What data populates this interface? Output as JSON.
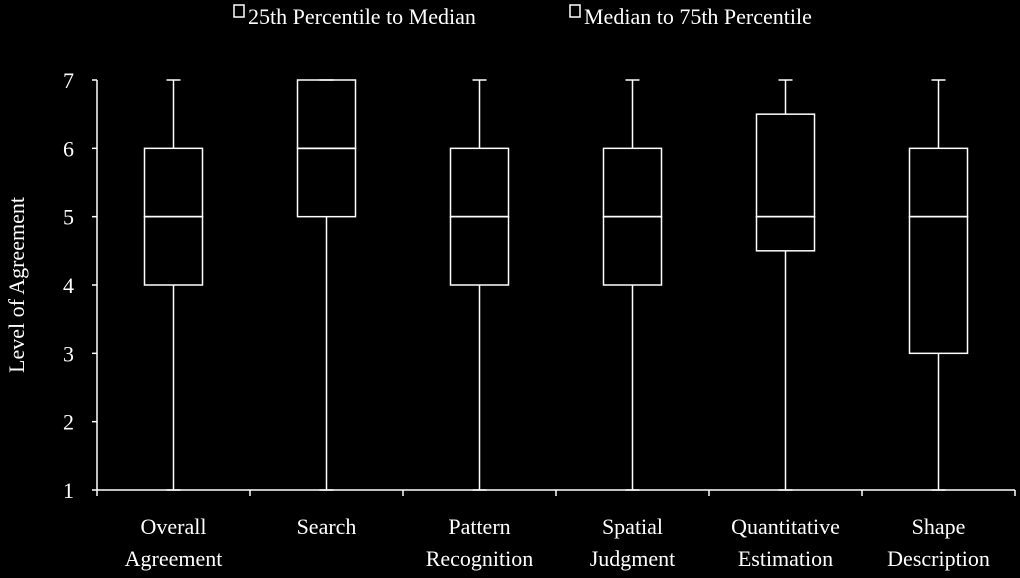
{
  "chart_data": {
    "type": "box",
    "ylabel": "Level of Agreement",
    "xlabel": "",
    "ylim": [
      1,
      7
    ],
    "yticks": [
      "1",
      "2",
      "3",
      "4",
      "5",
      "6",
      "7"
    ],
    "grid": false,
    "legend_position": "top",
    "legend": {
      "lower_box": "25th Percentile to Median",
      "upper_box": "Median to 75th Percentile"
    },
    "categories": [
      {
        "line1": "Overall",
        "line2": "Agreement"
      },
      {
        "line1": "Search",
        "line2": ""
      },
      {
        "line1": "Pattern",
        "line2": "Recognition"
      },
      {
        "line1": "Spatial",
        "line2": "Judgment"
      },
      {
        "line1": "Quantitative",
        "line2": "Estimation"
      },
      {
        "line1": "Shape",
        "line2": "Description"
      }
    ],
    "boxes": [
      {
        "min": 1,
        "q1": 4,
        "median": 5,
        "q3": 6,
        "max": 7
      },
      {
        "min": 1,
        "q1": 5,
        "median": 6,
        "q3": 7,
        "max": 7
      },
      {
        "min": 1,
        "q1": 4,
        "median": 5,
        "q3": 6,
        "max": 7
      },
      {
        "min": 1,
        "q1": 4,
        "median": 5,
        "q3": 6,
        "max": 7
      },
      {
        "min": 1,
        "q1": 4.5,
        "median": 5,
        "q3": 6.5,
        "max": 7
      },
      {
        "min": 1,
        "q1": 3,
        "median": 5,
        "q3": 6,
        "max": 7
      }
    ],
    "colors": {
      "background": "#000000",
      "foreground": "#ffffff"
    }
  }
}
